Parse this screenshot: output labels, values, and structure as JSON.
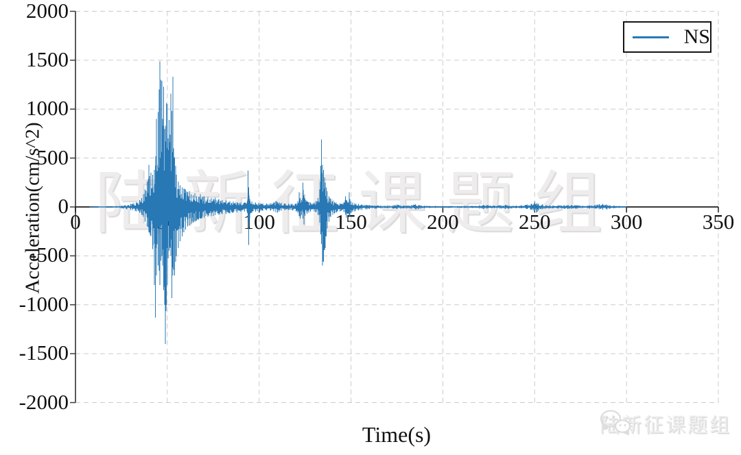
{
  "figure": {
    "background": "#ffffff",
    "plot_border": "left spine solid, grid dashed"
  },
  "legend": {
    "series_label": "NS",
    "line_color": "#2878b5",
    "position": "upper right"
  },
  "watermark": {
    "center_text": "陆新征课题组",
    "badge_text": "陆新征课题组",
    "badge_icon": "wechat-icon"
  },
  "colors": {
    "series": "#2878b5",
    "grid": "#cbcbcb",
    "axis": "#1c1c1c",
    "spine": "#3c3c3c",
    "tick_text": "#111111",
    "watermark": "#ededed"
  },
  "chart_data": {
    "type": "line",
    "title": "",
    "xlabel": "Time(s)",
    "ylabel": "Acceleration(cm/s^2)",
    "xlim": [
      0,
      350
    ],
    "ylim": [
      -2000,
      2000
    ],
    "xticks": [
      0,
      50,
      100,
      150,
      200,
      250,
      300,
      350
    ],
    "yticks": [
      2000,
      1500,
      1000,
      500,
      0,
      -500,
      -1000,
      -1500,
      -2000
    ],
    "grid": "dashed",
    "legend_position": "upper right",
    "series": [
      {
        "name": "NS",
        "color": "#2878b5",
        "signal": "seismic ground acceleration time history",
        "duration_s": 300,
        "peak_acceleration": {
          "max": 1490,
          "max_t": 46,
          "min": -1400,
          "min_t": 49
        },
        "secondary_events_t": [
          94,
          122,
          124,
          134,
          149,
          250
        ],
        "envelope_t_pos_neg": [
          [
            0,
            0,
            0
          ],
          [
            10,
            2,
            -2
          ],
          [
            15,
            5,
            -5
          ],
          [
            20,
            8,
            -8
          ],
          [
            25,
            15,
            -15
          ],
          [
            30,
            30,
            -30
          ],
          [
            33,
            45,
            -45
          ],
          [
            35,
            70,
            -60
          ],
          [
            36,
            90,
            -80
          ],
          [
            37,
            130,
            -100
          ],
          [
            38,
            180,
            -150
          ],
          [
            39,
            260,
            -200
          ],
          [
            40,
            430,
            -260
          ],
          [
            41,
            350,
            -300
          ],
          [
            42,
            330,
            -430
          ],
          [
            43,
            380,
            -800
          ],
          [
            43.5,
            420,
            -1130
          ],
          [
            44,
            900,
            -700
          ],
          [
            45,
            970,
            -600
          ],
          [
            45.5,
            1200,
            -650
          ],
          [
            46,
            1490,
            -800
          ],
          [
            46.5,
            1300,
            -550
          ],
          [
            47,
            1290,
            -500
          ],
          [
            47.5,
            900,
            -600
          ],
          [
            48,
            1230,
            -850
          ],
          [
            48.5,
            800,
            -1000
          ],
          [
            49,
            830,
            -1400
          ],
          [
            49.5,
            1060,
            -1000
          ],
          [
            50,
            1050,
            -800
          ],
          [
            50.5,
            700,
            -500
          ],
          [
            51,
            890,
            -450
          ],
          [
            51.5,
            740,
            -420
          ],
          [
            52,
            1160,
            -500
          ],
          [
            52.5,
            980,
            -930
          ],
          [
            53,
            1330,
            -700
          ],
          [
            53.5,
            600,
            -640
          ],
          [
            54,
            500,
            -700
          ],
          [
            54.5,
            420,
            -560
          ],
          [
            55,
            330,
            -500
          ],
          [
            56,
            260,
            -420
          ],
          [
            57,
            220,
            -350
          ],
          [
            58,
            200,
            -300
          ],
          [
            59,
            190,
            -260
          ],
          [
            60,
            180,
            -230
          ],
          [
            61,
            150,
            -200
          ],
          [
            62,
            160,
            -190
          ],
          [
            63,
            130,
            -170
          ],
          [
            64,
            120,
            -160
          ],
          [
            65,
            140,
            -150
          ],
          [
            66,
            110,
            -140
          ],
          [
            67,
            100,
            -130
          ],
          [
            68,
            130,
            -120
          ],
          [
            69,
            100,
            -115
          ],
          [
            70,
            110,
            -110
          ],
          [
            72,
            100,
            -100
          ],
          [
            74,
            90,
            -95
          ],
          [
            75,
            85,
            -90
          ],
          [
            76,
            95,
            -85
          ],
          [
            78,
            80,
            -80
          ],
          [
            80,
            70,
            -75
          ],
          [
            82,
            65,
            -70
          ],
          [
            84,
            60,
            -65
          ],
          [
            86,
            55,
            -60
          ],
          [
            88,
            50,
            -55
          ],
          [
            90,
            45,
            -50
          ],
          [
            92,
            45,
            -45
          ],
          [
            93.5,
            60,
            -60
          ],
          [
            94,
            370,
            -150
          ],
          [
            94.4,
            200,
            -390
          ],
          [
            94.8,
            80,
            -120
          ],
          [
            95,
            60,
            -70
          ],
          [
            96,
            55,
            -60
          ],
          [
            98,
            45,
            -50
          ],
          [
            100,
            40,
            -45
          ],
          [
            102,
            35,
            -40
          ],
          [
            104,
            35,
            -35
          ],
          [
            106,
            40,
            -40
          ],
          [
            108,
            45,
            -45
          ],
          [
            109,
            60,
            -55
          ],
          [
            110,
            50,
            -60
          ],
          [
            111,
            45,
            -45
          ],
          [
            112,
            40,
            -40
          ],
          [
            114,
            35,
            -35
          ],
          [
            116,
            30,
            -32
          ],
          [
            118,
            32,
            -35
          ],
          [
            120,
            40,
            -45
          ],
          [
            121,
            60,
            -60
          ],
          [
            121.8,
            150,
            -90
          ],
          [
            122.3,
            90,
            -120
          ],
          [
            123,
            70,
            -80
          ],
          [
            123.8,
            250,
            -120
          ],
          [
            124.3,
            120,
            -180
          ],
          [
            125,
            80,
            -90
          ],
          [
            126,
            60,
            -70
          ],
          [
            127,
            50,
            -60
          ],
          [
            128,
            45,
            -50
          ],
          [
            130,
            45,
            -45
          ],
          [
            131,
            60,
            -55
          ],
          [
            132,
            90,
            -80
          ],
          [
            133,
            180,
            -160
          ],
          [
            133.6,
            420,
            -280
          ],
          [
            134,
            690,
            -380
          ],
          [
            134.5,
            430,
            -600
          ],
          [
            135,
            380,
            -560
          ],
          [
            135.5,
            300,
            -440
          ],
          [
            136,
            250,
            -420
          ],
          [
            136.5,
            200,
            -300
          ],
          [
            137,
            160,
            -220
          ],
          [
            138,
            110,
            -150
          ],
          [
            139,
            80,
            -100
          ],
          [
            140,
            60,
            -80
          ],
          [
            141,
            50,
            -65
          ],
          [
            142,
            45,
            -55
          ],
          [
            144,
            40,
            -45
          ],
          [
            146,
            45,
            -50
          ],
          [
            147,
            110,
            -80
          ],
          [
            147.6,
            70,
            -110
          ],
          [
            148,
            60,
            -70
          ],
          [
            149,
            150,
            -90
          ],
          [
            149.5,
            80,
            -100
          ],
          [
            150,
            55,
            -60
          ],
          [
            151,
            45,
            -50
          ],
          [
            152,
            40,
            -45
          ],
          [
            154,
            30,
            -35
          ],
          [
            156,
            25,
            -30
          ],
          [
            158,
            22,
            -25
          ],
          [
            160,
            20,
            -22
          ],
          [
            163,
            15,
            -18
          ],
          [
            166,
            14,
            -15
          ],
          [
            170,
            13,
            -14
          ],
          [
            173,
            18,
            -16
          ],
          [
            175,
            25,
            -22
          ],
          [
            177,
            18,
            -18
          ],
          [
            180,
            15,
            -16
          ],
          [
            183,
            22,
            -20
          ],
          [
            185,
            28,
            -25
          ],
          [
            187,
            20,
            -20
          ],
          [
            190,
            14,
            -15
          ],
          [
            193,
            12,
            -12
          ],
          [
            196,
            10,
            -11
          ],
          [
            200,
            10,
            -10
          ],
          [
            204,
            10,
            -10
          ],
          [
            208,
            12,
            -12
          ],
          [
            212,
            10,
            -11
          ],
          [
            216,
            12,
            -12
          ],
          [
            220,
            18,
            -16
          ],
          [
            222,
            22,
            -20
          ],
          [
            224,
            18,
            -18
          ],
          [
            228,
            14,
            -14
          ],
          [
            231,
            18,
            -16
          ],
          [
            234,
            22,
            -20
          ],
          [
            236,
            18,
            -18
          ],
          [
            240,
            14,
            -14
          ],
          [
            243,
            16,
            -15
          ],
          [
            246,
            25,
            -22
          ],
          [
            248,
            30,
            -28
          ],
          [
            250,
            55,
            -45
          ],
          [
            251,
            40,
            -60
          ],
          [
            252,
            35,
            -35
          ],
          [
            254,
            25,
            -25
          ],
          [
            256,
            18,
            -18
          ],
          [
            260,
            14,
            -15
          ],
          [
            263,
            16,
            -16
          ],
          [
            266,
            20,
            -18
          ],
          [
            268,
            18,
            -20
          ],
          [
            270,
            22,
            -20
          ],
          [
            273,
            16,
            -16
          ],
          [
            276,
            14,
            -14
          ],
          [
            280,
            16,
            -16
          ],
          [
            283,
            20,
            -18
          ],
          [
            285,
            28,
            -25
          ],
          [
            287,
            30,
            -28
          ],
          [
            289,
            25,
            -25
          ],
          [
            291,
            18,
            -18
          ],
          [
            293,
            14,
            -14
          ],
          [
            296,
            10,
            -10
          ],
          [
            298,
            8,
            -8
          ],
          [
            300,
            5,
            -5
          ]
        ]
      }
    ]
  }
}
